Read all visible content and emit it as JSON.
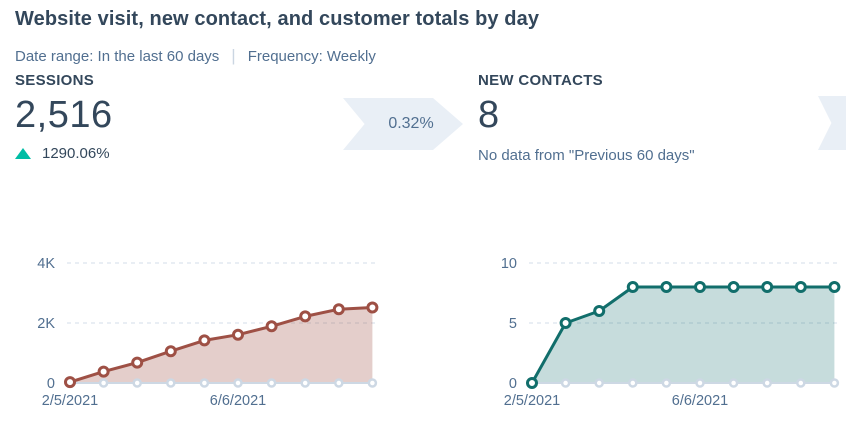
{
  "header": {
    "title": "Website visit, new contact, and customer totals by day",
    "date_range_label": "Date range: In the last 60 days",
    "divider": "|",
    "frequency_label": "Frequency: Weekly"
  },
  "metrics": {
    "sessions": {
      "label": "SESSIONS",
      "value": "2,516",
      "delta": "1290.06%",
      "delta_direction": "up"
    },
    "sessions_to_contacts_rate": "0.32%",
    "new_contacts": {
      "label": "NEW CONTACTS",
      "value": "8",
      "note": "No data from \"Previous 60 days\""
    }
  },
  "colors": {
    "delta_up": "#00bda5",
    "arrow_bg": "#e9eff6",
    "sessions_line": "#9e5045",
    "sessions_fill": "rgba(158,80,69,0.28)",
    "contacts_line": "#116e6b",
    "contacts_fill": "rgba(17,110,107,0.24)",
    "previous_period": "#cdd8e4",
    "text_dark": "#33475b",
    "text_muted": "#516f90"
  },
  "chart_data": [
    {
      "type": "area",
      "name": "sessions",
      "title": "",
      "x": [
        "2/5/2021",
        "",
        "",
        "",
        "",
        "6/6/2021",
        "",
        "",
        "",
        ""
      ],
      "series": [
        {
          "name": "current-period",
          "values": [
            30,
            380,
            680,
            1060,
            1420,
            1610,
            1890,
            2220,
            2460,
            2516
          ]
        },
        {
          "name": "previous-period",
          "values": [
            0,
            0,
            0,
            0,
            0,
            0,
            0,
            0,
            0,
            0
          ]
        }
      ],
      "ylim": [
        0,
        4000
      ],
      "y_ticks": [
        {
          "value": 0,
          "label": "0"
        },
        {
          "value": 2000,
          "label": "2K"
        },
        {
          "value": 4000,
          "label": "4K"
        }
      ],
      "x_tick_labels": [
        {
          "index": 0,
          "label": "2/5/2021"
        },
        {
          "index": 5,
          "label": "6/6/2021"
        }
      ],
      "grid": "dashed-horizontal",
      "legend": "none",
      "line_color": "#9e5045",
      "fill_color": "rgba(158,80,69,0.28)",
      "prev_color": "#cdd8e4"
    },
    {
      "type": "area",
      "name": "new-contacts",
      "title": "",
      "x": [
        "2/5/2021",
        "",
        "",
        "",
        "",
        "6/6/2021",
        "",
        "",
        "",
        ""
      ],
      "series": [
        {
          "name": "current-period",
          "values": [
            0,
            5,
            6,
            8,
            8,
            8,
            8,
            8,
            8,
            8
          ]
        },
        {
          "name": "previous-period",
          "values": [
            0,
            0,
            0,
            0,
            0,
            0,
            0,
            0,
            0,
            0
          ]
        }
      ],
      "ylim": [
        0,
        10
      ],
      "y_ticks": [
        {
          "value": 0,
          "label": "0"
        },
        {
          "value": 5,
          "label": "5"
        },
        {
          "value": 10,
          "label": "10"
        }
      ],
      "x_tick_labels": [
        {
          "index": 0,
          "label": "2/5/2021"
        },
        {
          "index": 5,
          "label": "6/6/2021"
        }
      ],
      "grid": "dashed-horizontal",
      "legend": "none",
      "line_color": "#116e6b",
      "fill_color": "rgba(17,110,107,0.24)",
      "prev_color": "#cdd8e4"
    }
  ]
}
